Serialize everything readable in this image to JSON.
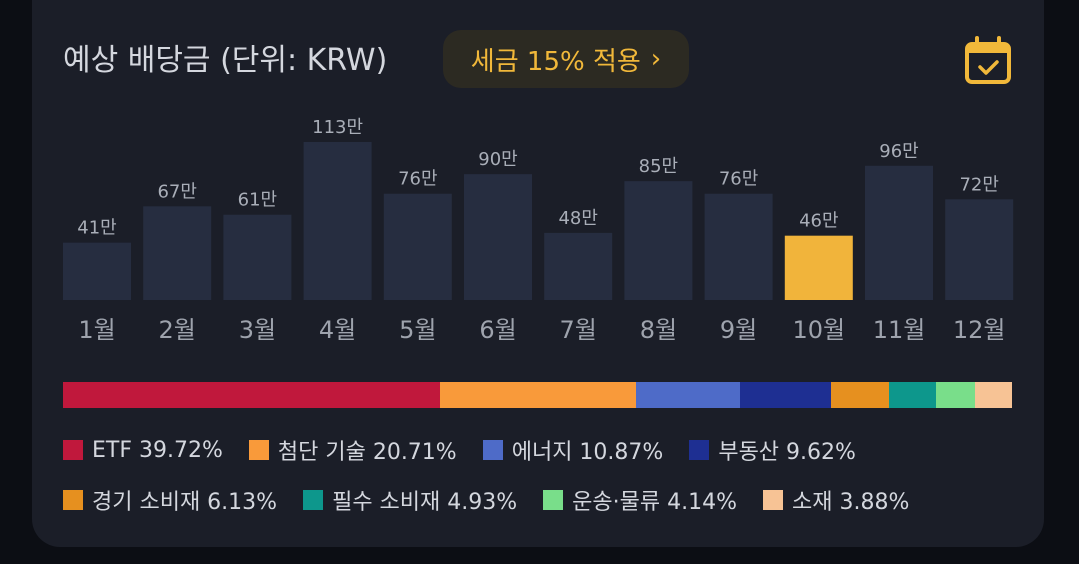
{
  "header": {
    "title": "예상 배당금 (단위: KRW)",
    "tax_button": "세금 15% 적용",
    "tax_chevron": "›",
    "calendar_icon": "calendar-check-icon"
  },
  "colors": {
    "bar": "#262d40",
    "highlight": "#f1b43b",
    "accent": "#f1b83a"
  },
  "chart_data": {
    "type": "bar",
    "categories": [
      "1월",
      "2월",
      "3월",
      "4월",
      "5월",
      "6월",
      "7월",
      "8월",
      "9월",
      "10월",
      "11월",
      "12월"
    ],
    "values": [
      41,
      67,
      61,
      113,
      76,
      90,
      48,
      85,
      76,
      46,
      96,
      72
    ],
    "value_labels": [
      "41만",
      "67만",
      "61만",
      "113만",
      "76만",
      "90만",
      "48만",
      "85만",
      "76만",
      "46만",
      "96만",
      "72만"
    ],
    "highlight_index": 9,
    "title": "",
    "xlabel": "",
    "ylabel": "",
    "ylim": [
      0,
      113
    ],
    "grid": false
  },
  "sectors": [
    {
      "label": "ETF 39.72%",
      "pct": 39.72,
      "color": "#c0183c"
    },
    {
      "label": "첨단 기술 20.71%",
      "pct": 20.71,
      "color": "#f99a3a"
    },
    {
      "label": "에너지 10.87%",
      "pct": 10.87,
      "color": "#4e6bc8"
    },
    {
      "label": "부동산 9.62%",
      "pct": 9.62,
      "color": "#1e2f92"
    },
    {
      "label": "경기 소비재 6.13%",
      "pct": 6.13,
      "color": "#e6901f"
    },
    {
      "label": "필수 소비재 4.93%",
      "pct": 4.93,
      "color": "#0d978c"
    },
    {
      "label": "운송·물류 4.14%",
      "pct": 4.14,
      "color": "#79de8a"
    },
    {
      "label": "소재 3.88%",
      "pct": 3.88,
      "color": "#f7c395"
    }
  ]
}
